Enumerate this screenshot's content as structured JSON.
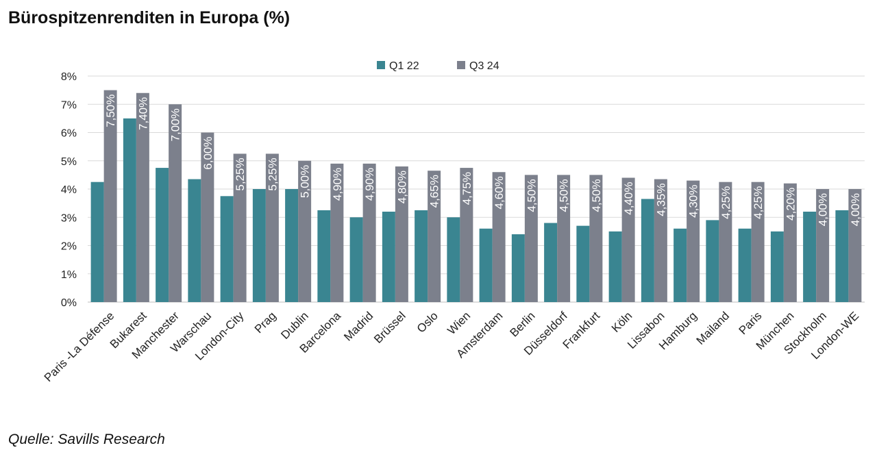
{
  "title": "Bürospitzenrenditen in Europa (%)",
  "source": "Quelle: Savills Research",
  "chart_data": {
    "type": "bar",
    "categories": [
      "Paris -La Défense",
      "Bukarest",
      "Manchester",
      "Warschau",
      "London-City",
      "Prag",
      "Dublin",
      "Barcelona",
      "Madrid",
      "Brüssel",
      "Oslo",
      "Wien",
      "Amsterdam",
      "Berlin",
      "Düsseldorf",
      "Frankfurt",
      "Köln",
      "Lissabon",
      "Hamburg",
      "Mailand",
      "Paris",
      "München",
      "Stockholm",
      "London-WE"
    ],
    "series": [
      {
        "name": "Q1 22",
        "color": "#3a8591",
        "values": [
          4.25,
          6.5,
          4.75,
          4.35,
          3.75,
          4.0,
          4.0,
          3.25,
          3.0,
          3.2,
          3.25,
          3.0,
          2.6,
          2.4,
          2.8,
          2.7,
          2.5,
          3.65,
          2.6,
          2.9,
          2.6,
          2.5,
          3.2,
          3.25
        ]
      },
      {
        "name": "Q3 24",
        "color": "#7c808c",
        "values": [
          7.5,
          7.4,
          7.0,
          6.0,
          5.25,
          5.25,
          5.0,
          4.9,
          4.9,
          4.8,
          4.65,
          4.75,
          4.6,
          4.5,
          4.5,
          4.5,
          4.4,
          4.35,
          4.3,
          4.25,
          4.25,
          4.2,
          4.0,
          4.0
        ],
        "data_labels": [
          "7,50%",
          "7,40%",
          "7,00%",
          "6,00%",
          "5,25%",
          "5,25%",
          "5,00%",
          "4,90%",
          "4,90%",
          "4,80%",
          "4,65%",
          "4,75%",
          "4,60%",
          "4,50%",
          "4,50%",
          "4,50%",
          "4,40%",
          "4,35%",
          "4,30%",
          "4,25%",
          "4,25%",
          "4,20%",
          "4,00%",
          "4,00%"
        ]
      }
    ],
    "y_ticks": [
      "0%",
      "1%",
      "2%",
      "3%",
      "4%",
      "5%",
      "6%",
      "7%",
      "8%"
    ],
    "ylim": [
      0,
      8
    ],
    "grid": true,
    "legend_position": "top-center"
  }
}
